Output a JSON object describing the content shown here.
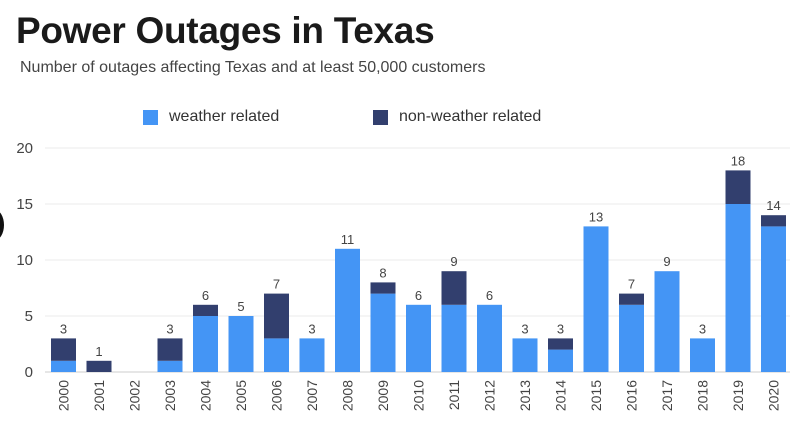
{
  "chart_data": {
    "type": "bar",
    "stacked": true,
    "title": "Power Outages in Texas",
    "subtitle": "Number of outages affecting Texas and at least 50,000 customers",
    "xlabel": "",
    "ylabel": "",
    "ylim": [
      0,
      20
    ],
    "yticks": [
      0,
      5,
      10,
      15,
      20
    ],
    "grid": true,
    "legend_position": "top",
    "categories": [
      "2000",
      "2001",
      "2002",
      "2003",
      "2004",
      "2005",
      "2006",
      "2007",
      "2008",
      "2009",
      "2010",
      "2011",
      "2012",
      "2013",
      "2014",
      "2015",
      "2016",
      "2017",
      "2018",
      "2019",
      "2020"
    ],
    "series": [
      {
        "name": "weather related",
        "color": "#4495f5",
        "values": [
          1,
          0,
          0,
          1,
          5,
          5,
          3,
          3,
          11,
          7,
          6,
          6,
          6,
          3,
          2,
          13,
          6,
          9,
          3,
          15,
          13
        ]
      },
      {
        "name": "non-weather related",
        "color": "#323f6e",
        "values": [
          2,
          1,
          0,
          2,
          1,
          0,
          4,
          0,
          0,
          1,
          0,
          3,
          0,
          0,
          1,
          0,
          1,
          0,
          0,
          3,
          1
        ]
      }
    ],
    "totals": [
      3,
      1,
      null,
      3,
      6,
      5,
      7,
      3,
      11,
      8,
      6,
      9,
      6,
      3,
      3,
      13,
      7,
      9,
      3,
      18,
      14
    ]
  }
}
